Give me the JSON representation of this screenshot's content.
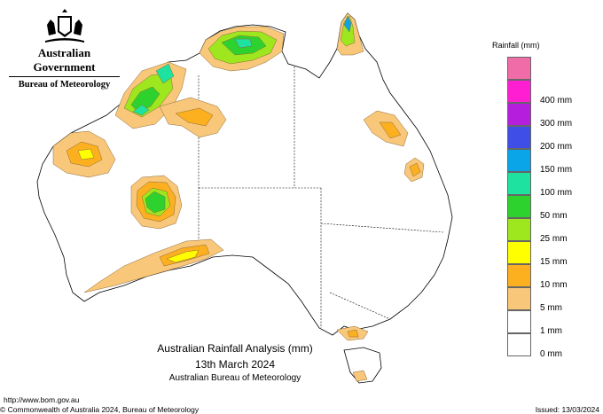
{
  "header": {
    "government": "Australian Government",
    "bureau": "Bureau of Meteorology"
  },
  "legend": {
    "title": "Rainfall (mm)",
    "entries": [
      {
        "label": "",
        "color": "#f06ca8"
      },
      {
        "label": "400 mm",
        "color": "#ff1ed2"
      },
      {
        "label": "300 mm",
        "color": "#b41edc"
      },
      {
        "label": "200 mm",
        "color": "#3f4ee6"
      },
      {
        "label": "150 mm",
        "color": "#0aa5e8"
      },
      {
        "label": "100 mm",
        "color": "#1ee3a0"
      },
      {
        "label": "50 mm",
        "color": "#2ed22e"
      },
      {
        "label": "25 mm",
        "color": "#9ee61e"
      },
      {
        "label": "15 mm",
        "color": "#ffff00"
      },
      {
        "label": "10 mm",
        "color": "#fcb020"
      },
      {
        "label": "5 mm",
        "color": "#f9c779"
      },
      {
        "label": "1 mm",
        "color": "#ffffff"
      },
      {
        "label": "0 mm",
        "color": "#ffffff"
      }
    ]
  },
  "caption": {
    "title": "Australian Rainfall Analysis (mm)",
    "date": "13th March 2024",
    "source": "Australian Bureau of Meteorology"
  },
  "footer": {
    "url": "http://www.bom.gov.au",
    "copyright": "© Commonwealth of Australia 2024, Bureau of Meteorology",
    "issued": "Issued: 13/03/2024"
  }
}
